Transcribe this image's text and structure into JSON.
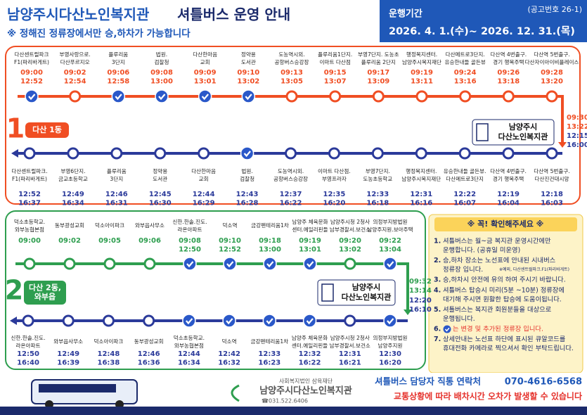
{
  "header": {
    "title_org": "남양주시다산노인복지관",
    "title_main": "셔틀버스 운영 안내",
    "subtitle": "※ 정해진 정류장에서만 승,하차가 가능합니다",
    "notice_no": "(공고번호 26-1)",
    "period_label": "운행기간",
    "period": "2026. 4. 1.(수)~ 2026. 12. 31.(목)"
  },
  "routes": [
    {
      "number": "1",
      "name": [
        "다산 1동"
      ],
      "color": "#f04e23",
      "back_color": "#2b3a9a",
      "outbound": [
        {
          "name": [
            "다산센트럴파크",
            "F1(파리바게트)"
          ],
          "times": [
            "09:00",
            "12:52"
          ],
          "checked": true
        },
        {
          "name": [
            "부영사랑으로.",
            "다산푸르지오"
          ],
          "times": [
            "09:02",
            "12:54"
          ],
          "checked": false
        },
        {
          "name": [
            "플루리움",
            "3단지"
          ],
          "times": [
            "09:06",
            "12:58"
          ],
          "checked": true
        },
        {
          "name": [
            "법원.",
            "검찰청"
          ],
          "times": [
            "09:08",
            "13:00"
          ],
          "checked": true
        },
        {
          "name": [
            "다산한마음",
            "교회"
          ],
          "times": [
            "09:09",
            "13:01"
          ],
          "checked": true
        },
        {
          "name": [
            "정약용",
            "도서관"
          ],
          "times": [
            "09:10",
            "13:02"
          ],
          "checked": true
        },
        {
          "name": [
            "도농역시외.",
            "공항버스승강장"
          ],
          "times": [
            "09:13",
            "13:05"
          ],
          "checked": false
        },
        {
          "name": [
            "플루리움1단지.",
            "이마트 다산점"
          ],
          "times": [
            "09:15",
            "13:07"
          ],
          "checked": false
        },
        {
          "name": [
            "부영7단지. 도농초",
            "플루리움 2단지"
          ],
          "times": [
            "09:17",
            "13:09"
          ],
          "checked": false
        },
        {
          "name": [
            "행정복지센터.",
            "남양주시복지재단"
          ],
          "times": [
            "09:19",
            "13:11"
          ],
          "checked": false
        },
        {
          "name": [
            "다산메트로3단지.",
            "유승한내들 골든뷰"
          ],
          "times": [
            "09:24",
            "13:16"
          ],
          "checked": false
        },
        {
          "name": [
            "다산역 4번출구.",
            "경기 행복주택"
          ],
          "times": [
            "09:26",
            "13:18"
          ],
          "checked": false
        },
        {
          "name": [
            "다산역 5번출구.",
            "다산자이아이비플레이스"
          ],
          "times": [
            "09:28",
            "13:20"
          ],
          "checked": false
        }
      ],
      "terminal": {
        "name": [
          "남양주시",
          "다산노인복지관"
        ],
        "out_times": [
          "09:30",
          "13:22"
        ],
        "back_times": [
          "12:15",
          "16:00"
        ]
      },
      "inbound": [
        {
          "name": [
            "다산센트럴파크.",
            "F1(파리바게트)"
          ],
          "times": [
            "12:52",
            "16:37"
          ],
          "checked": false
        },
        {
          "name": [
            "부영6단지.",
            "금교초등학교"
          ],
          "times": [
            "12:49",
            "16:34"
          ],
          "checked": false
        },
        {
          "name": [
            "플루리움",
            "3단지"
          ],
          "times": [
            "12:46",
            "16:31"
          ],
          "checked": false
        },
        {
          "name": [
            "정약용",
            "도서관"
          ],
          "times": [
            "12:45",
            "16:30"
          ],
          "checked": false
        },
        {
          "name": [
            "다산한마음",
            "교회"
          ],
          "times": [
            "12:44",
            "16:29"
          ],
          "checked": false
        },
        {
          "name": [
            "법원.",
            "검찰청"
          ],
          "times": [
            "12:43",
            "16:28"
          ],
          "checked": true
        },
        {
          "name": [
            "도농역시외.",
            "공항버스승강장"
          ],
          "times": [
            "12:37",
            "16:22"
          ],
          "checked": false
        },
        {
          "name": [
            "이마트 다산점.",
            "부영프라자"
          ],
          "times": [
            "12:35",
            "16:20"
          ],
          "checked": false
        },
        {
          "name": [
            "부영7단지.",
            "도농초등학교"
          ],
          "times": [
            "12:33",
            "16:18"
          ],
          "checked": false
        },
        {
          "name": [
            "행정복지센터.",
            "남양주시복지재단"
          ],
          "times": [
            "12:31",
            "16:16"
          ],
          "checked": false
        },
        {
          "name": [
            "유승한내들 골든뷰.",
            "다산메트로3단지"
          ],
          "times": [
            "12:22",
            "16:07"
          ],
          "checked": false
        },
        {
          "name": [
            "다산역 4번출구.",
            "경기 행복주택"
          ],
          "times": [
            "12:19",
            "16:04"
          ],
          "checked": false
        },
        {
          "name": [
            "다산역 5번출구.",
            "다산진건대시앙"
          ],
          "times": [
            "12:18",
            "16:03"
          ],
          "checked": false
        }
      ]
    },
    {
      "number": "2",
      "name": [
        "다산 2동,",
        "와부읍"
      ],
      "color": "#2e9e4f",
      "back_color": "#2b3a9a",
      "outbound": [
        {
          "name": [
            "덕소초등학교.",
            "와부농협본점"
          ],
          "times": [
            "09:00"
          ],
          "checked": false
        },
        {
          "name": [
            "동부광성교회"
          ],
          "times": [
            "09:02"
          ],
          "checked": false
        },
        {
          "name": [
            "덕소아이파크"
          ],
          "times": [
            "09:05"
          ],
          "checked": false
        },
        {
          "name": [
            "와부읍사무소"
          ],
          "times": [
            "09:06"
          ],
          "checked": false
        },
        {
          "name": [
            "신한.한솔.진도.",
            "라온아파트"
          ],
          "times": [
            "09:08",
            "12:50"
          ],
          "checked": true
        },
        {
          "name": [
            "덕소역"
          ],
          "times": [
            "09:10",
            "12:52"
          ],
          "checked": true
        },
        {
          "name": [
            "금강펜테리움1차"
          ],
          "times": [
            "09:18",
            "13:00"
          ],
          "checked": true
        },
        {
          "name": [
            "남양주 체육문화",
            "센터.예일리핀들"
          ],
          "times": [
            "09:19",
            "13:01"
          ],
          "checked": true
        },
        {
          "name": [
            "남양주시청 2청사",
            "남부경찰서.보건소"
          ],
          "times": [
            "09:20",
            "13:02"
          ],
          "checked": false
        },
        {
          "name": [
            "의정부지방법원",
            "남양주지원.보아주택"
          ],
          "times": [
            "09:22",
            "13:04"
          ],
          "checked": true
        }
      ],
      "terminal": {
        "name": [
          "남양주시",
          "다산노인복지관"
        ],
        "out_times": [
          "09:32",
          "13:14"
        ],
        "back_times": [
          "12:20",
          "16:10"
        ]
      },
      "inbound": [
        {
          "name": [
            "신한.한솔.진도.",
            "라온아파트"
          ],
          "times": [
            "12:50",
            "16:40"
          ],
          "checked": false
        },
        {
          "name": [
            "와부읍사무소"
          ],
          "times": [
            "12:49",
            "16:39"
          ],
          "checked": false
        },
        {
          "name": [
            "덕소아이파크"
          ],
          "times": [
            "12:48",
            "16:38"
          ],
          "checked": false
        },
        {
          "name": [
            "동부광성교회"
          ],
          "times": [
            "12:46",
            "16:36"
          ],
          "checked": false
        },
        {
          "name": [
            "덕소초등학교.",
            "와부농협본점"
          ],
          "times": [
            "12:44",
            "16:34"
          ],
          "checked": true
        },
        {
          "name": [
            "덕소역"
          ],
          "times": [
            "12:42",
            "16:32"
          ],
          "checked": true
        },
        {
          "name": [
            "금강펜테리움1차"
          ],
          "times": [
            "12:33",
            "16:23"
          ],
          "checked": true
        },
        {
          "name": [
            "남양주 체육문화",
            "센터.예일리핀들"
          ],
          "times": [
            "12:32",
            "16:22"
          ],
          "checked": true
        },
        {
          "name": [
            "남양주시청 2청사",
            "남부경찰서.보건소"
          ],
          "times": [
            "12:31",
            "16:21"
          ],
          "checked": false
        },
        {
          "name": [
            "의정부지방법원",
            "남양주지원"
          ],
          "times": [
            "12:30",
            "16:20"
          ],
          "checked": true
        }
      ]
    }
  ],
  "notice": {
    "title": "※ 꼭! 확인해주세요 ※",
    "items": [
      {
        "number": "1.",
        "lines": [
          "셔틀버스는 월~금 복지관 운영시간에만",
          "운행합니다. (공휴일 미운영)"
        ]
      },
      {
        "number": "2.",
        "lines": [
          "승,하차 장소는 노선표에 안내된 시내버스",
          "정류장 입니다."
        ],
        "note": "※예외, 다산센트럴파크.F1(파리바게트)"
      },
      {
        "number": "3.",
        "lines": [
          "승,하차시 안전에 유의 하여 주시기 바랍니다."
        ]
      },
      {
        "number": "4.",
        "lines": [
          "셔틀버스 탑승시 미리(5분 ~10분) 정류장에",
          "대기해 주시면 원활한 탑승에 도움이됩니다."
        ]
      },
      {
        "number": "5.",
        "lines": [
          "셔틀버스는 복지관 회원분들을 대상으로",
          "운행됩니다."
        ]
      },
      {
        "number": "6.",
        "lines": [
          "는 변경 및 추가된 정류장 입니다."
        ],
        "icon": true
      },
      {
        "number": "7.",
        "lines": [
          "상세안내는 노선표 하단에 표시된 큐알코드를",
          "휴대전화 카메라로 찍으셔서 확인 부탁드립니다."
        ]
      }
    ]
  },
  "footer": {
    "org_parent": "사회복지법인 삼육재단",
    "org_name": "남양주시다산노인복지관",
    "phone": "☎031.522.6406",
    "contact_label": "셔틀버스 담당자 직통 연락처",
    "contact_number": "070-4616-6568",
    "warning": "교통상황에 따라 배차시간 오차가 발생할 수 있습니다"
  }
}
